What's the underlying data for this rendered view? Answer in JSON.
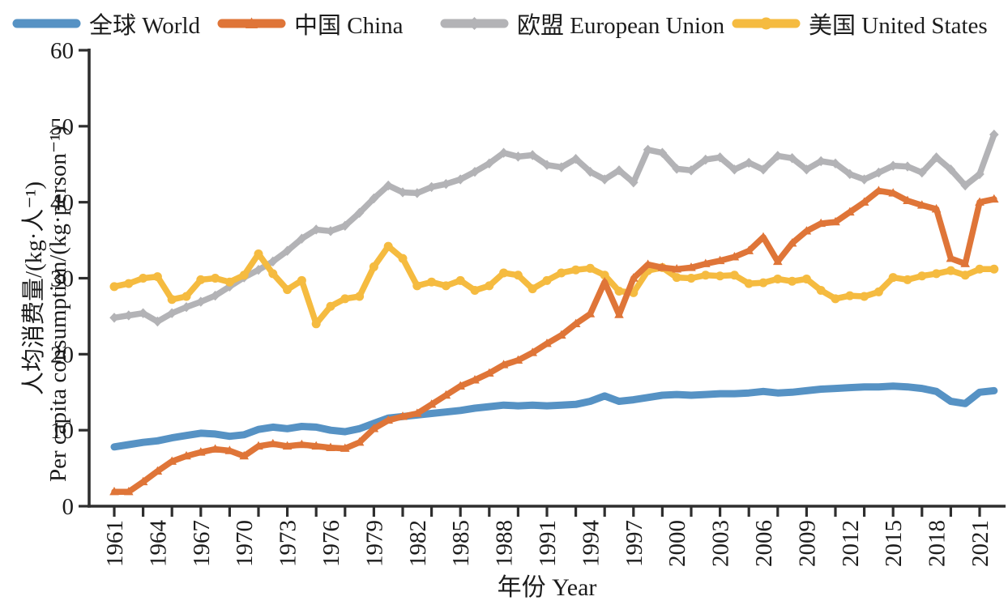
{
  "legend": {
    "items": [
      {
        "id": "world",
        "label": "全球 World"
      },
      {
        "id": "china",
        "label": "中国 China"
      },
      {
        "id": "eu",
        "label": "欧盟 European Union"
      },
      {
        "id": "us",
        "label": "美国 United States"
      }
    ]
  },
  "axes": {
    "x_title": "年份 Year",
    "y_title_zh": "人均消费量/(kg·人⁻¹)",
    "y_title_en": "Per capita consumption/(kg·person⁻¹)"
  },
  "colors": {
    "axis": "#2e2e2e",
    "text": "#1c1c1c",
    "background": "#ffffff"
  },
  "chart_data": {
    "type": "line",
    "title": "",
    "xlabel": "年份 Year",
    "ylabel": "人均消费量/(kg·人⁻¹) Per capita consumption/(kg·person⁻¹)",
    "ylim": [
      0,
      60
    ],
    "y_ticks": [
      0,
      10,
      20,
      30,
      40,
      50,
      60
    ],
    "x_tick_labels": [
      1961,
      1964,
      1967,
      1970,
      1973,
      1976,
      1979,
      1982,
      1985,
      1988,
      1991,
      1994,
      1997,
      2000,
      2003,
      2006,
      2009,
      2012,
      2015,
      2018,
      2021
    ],
    "x_minor_tick_step": 2,
    "grid": false,
    "legend_position": "top",
    "z_order": [
      "eu",
      "us",
      "world",
      "china"
    ],
    "years": [
      1961,
      1962,
      1963,
      1964,
      1965,
      1966,
      1967,
      1968,
      1969,
      1970,
      1971,
      1972,
      1973,
      1974,
      1975,
      1976,
      1977,
      1978,
      1979,
      1980,
      1981,
      1982,
      1983,
      1984,
      1985,
      1986,
      1987,
      1988,
      1989,
      1990,
      1991,
      1992,
      1993,
      1994,
      1995,
      1996,
      1997,
      1998,
      1999,
      2000,
      2001,
      2002,
      2003,
      2004,
      2005,
      2006,
      2007,
      2008,
      2009,
      2010,
      2011,
      2012,
      2013,
      2014,
      2015,
      2016,
      2017,
      2018,
      2019,
      2020,
      2021,
      2022
    ],
    "series": [
      {
        "id": "world",
        "name": "全球 World",
        "color": "#5692C4",
        "marker": "none",
        "line_width": 9,
        "values": [
          7.8,
          8.1,
          8.4,
          8.6,
          9.0,
          9.3,
          9.6,
          9.5,
          9.2,
          9.4,
          10.1,
          10.4,
          10.2,
          10.5,
          10.4,
          10.0,
          9.8,
          10.2,
          10.9,
          11.6,
          11.8,
          12.0,
          12.2,
          12.4,
          12.6,
          12.9,
          13.1,
          13.3,
          13.2,
          13.3,
          13.2,
          13.3,
          13.4,
          13.8,
          14.5,
          13.8,
          14.0,
          14.3,
          14.6,
          14.7,
          14.6,
          14.7,
          14.8,
          14.8,
          14.9,
          15.1,
          14.9,
          15.0,
          15.2,
          15.4,
          15.5,
          15.6,
          15.7,
          15.7,
          15.8,
          15.7,
          15.5,
          15.1,
          13.8,
          13.5,
          15.0,
          15.2
        ]
      },
      {
        "id": "china",
        "name": "中国 China",
        "color": "#DF7538",
        "marker": "triangle",
        "line_width": 7.5,
        "values": [
          1.9,
          1.9,
          3.2,
          4.6,
          5.9,
          6.6,
          7.1,
          7.5,
          7.3,
          6.6,
          7.9,
          8.2,
          7.9,
          8.1,
          7.9,
          7.7,
          7.6,
          8.4,
          10.2,
          11.3,
          11.8,
          12.2,
          13.4,
          14.6,
          15.8,
          16.6,
          17.5,
          18.6,
          19.2,
          20.2,
          21.4,
          22.5,
          24.0,
          25.3,
          29.5,
          25.2,
          30.0,
          31.8,
          31.4,
          31.2,
          31.4,
          31.9,
          32.3,
          32.8,
          33.6,
          35.4,
          32.2,
          34.6,
          36.2,
          37.2,
          37.4,
          38.7,
          40.0,
          41.5,
          41.2,
          40.2,
          39.6,
          39.1,
          32.6,
          31.9,
          40.0,
          40.4
        ]
      },
      {
        "id": "eu",
        "name": "欧盟 European Union",
        "color": "#B3B3B6",
        "marker": "diamond",
        "line_width": 7.5,
        "values": [
          24.8,
          25.1,
          25.4,
          24.3,
          25.4,
          26.2,
          26.9,
          27.7,
          28.9,
          30.1,
          31.1,
          32.2,
          33.6,
          35.2,
          36.4,
          36.2,
          36.9,
          38.6,
          40.5,
          42.2,
          41.3,
          41.2,
          42.0,
          42.4,
          43.0,
          44.0,
          45.1,
          46.5,
          46.0,
          46.2,
          44.9,
          44.6,
          45.7,
          44.0,
          43.0,
          44.2,
          42.6,
          46.9,
          46.5,
          44.4,
          44.2,
          45.6,
          45.9,
          44.3,
          45.2,
          44.3,
          46.1,
          45.8,
          44.3,
          45.4,
          45.1,
          43.7,
          43.0,
          43.9,
          44.8,
          44.7,
          43.9,
          45.9,
          44.3,
          42.2,
          43.7,
          48.9
        ]
      },
      {
        "id": "us",
        "name": "美国 United States",
        "color": "#F5BB40",
        "marker": "circle",
        "line_width": 7.5,
        "values": [
          28.9,
          29.3,
          30.0,
          30.2,
          27.2,
          27.6,
          29.8,
          30.0,
          29.5,
          30.4,
          33.2,
          30.6,
          28.5,
          29.7,
          24.0,
          26.3,
          27.3,
          27.6,
          31.5,
          34.2,
          32.6,
          29.0,
          29.5,
          29.0,
          29.7,
          28.4,
          29.0,
          30.7,
          30.4,
          28.6,
          29.7,
          30.7,
          31.1,
          31.3,
          30.4,
          28.3,
          28.1,
          31.0,
          31.4,
          30.1,
          30.0,
          30.4,
          30.3,
          30.4,
          29.3,
          29.4,
          29.9,
          29.6,
          29.9,
          28.4,
          27.3,
          27.7,
          27.6,
          28.2,
          30.1,
          29.8,
          30.3,
          30.6,
          31.0,
          30.4,
          31.2,
          31.2
        ]
      }
    ]
  }
}
